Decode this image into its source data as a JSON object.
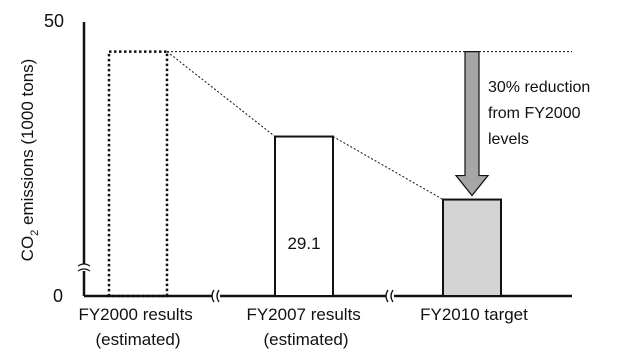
{
  "chart_data": {
    "type": "bar",
    "categories": [
      [
        "FY2000 results",
        "(estimated)"
      ],
      [
        "FY2007 results",
        "(estimated)"
      ],
      [
        "FY2010 target"
      ]
    ],
    "values": [
      44.6,
      29.1,
      17.6
    ],
    "data_labels": [
      "",
      "29.1",
      ""
    ],
    "bar_styles": [
      "dotted-outline",
      "solid-outline",
      "gray-fill"
    ],
    "ylabel_prefix": "CO",
    "ylabel_sub": "2",
    "ylabel_suffix": " emissions (1000 tons)",
    "ylim": [
      0,
      50
    ],
    "yticks": [
      "0",
      "50"
    ],
    "annotation": [
      "30% reduction",
      "from FY2000",
      "levels"
    ],
    "colors": {
      "axis": "#111111",
      "bar_outline": "#111111",
      "target_fill": "#d4d4d4",
      "arrow_fill": "#a6a6a6"
    }
  }
}
